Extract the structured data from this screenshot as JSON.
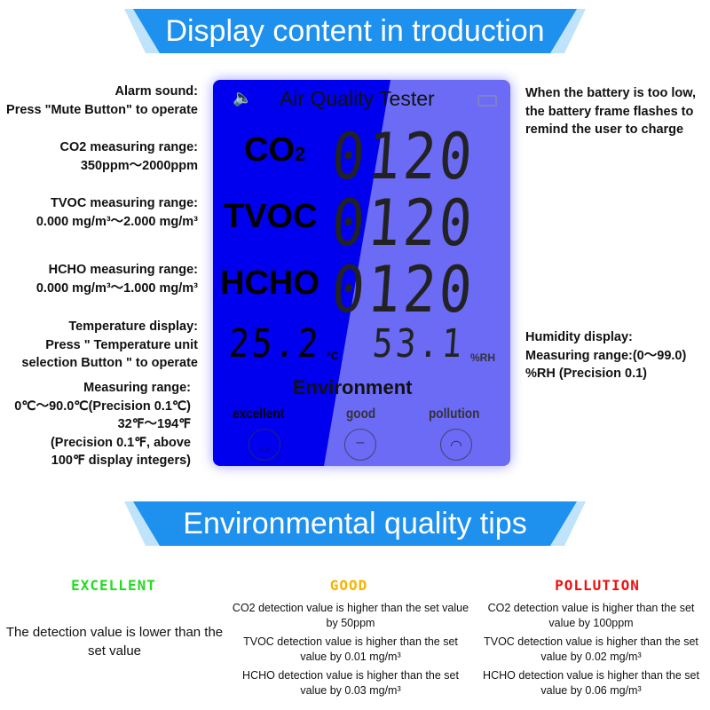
{
  "banner_top": "Display content in troduction",
  "banner_bottom": "Environmental quality tips",
  "left_notes": {
    "alarm": [
      "Alarm sound:",
      "Press \"Mute Button\" to operate"
    ],
    "co2": [
      "CO2 measuring range:",
      "350ppm～2000ppm"
    ],
    "tvoc": [
      "TVOC measuring range:",
      "0.000 mg/m³～2.000 mg/m³"
    ],
    "hcho": [
      "HCHO measuring range:",
      "0.000 mg/m³～1.000 mg/m³"
    ],
    "temp": [
      "Temperature display:",
      "Press \" Temperature unit",
      "selection Button \" to operate"
    ],
    "range": [
      "Measuring range:",
      "0℃～90.0℃(Precision 0.1℃)",
      "32℉～194℉",
      "(Precision 0.1℉, above",
      "100℉ display integers)"
    ]
  },
  "right_notes": {
    "battery": [
      "When the battery is too low,",
      "the battery frame flashes to",
      "remind the user to charge"
    ],
    "humidity": [
      "Humidity display:",
      "Measuring range:(0～99.0)",
      "%RH (Precision 0.1)"
    ]
  },
  "lcd": {
    "title": "Air Quality Tester",
    "icons": {
      "sound": "speaker-icon",
      "battery": "battery-icon"
    },
    "rows": [
      {
        "label": "CO",
        "sub": "2",
        "value": "0120"
      },
      {
        "label": "TVOC",
        "sub": "",
        "value": "0120"
      },
      {
        "label": "HCHO",
        "sub": "",
        "value": "0120"
      }
    ],
    "temperature": "25.2",
    "temp_unit": "°C",
    "humidity": "53.1",
    "humidity_unit": "%RH",
    "environment": "Environment",
    "levels": [
      "excellent",
      "good",
      "pollution"
    ],
    "faces": [
      "☺",
      "😑",
      "☹"
    ]
  },
  "tips": {
    "excellent": {
      "title": "EXCELLENT",
      "color": "#22dd22",
      "text": "The detection value is lower than the set value"
    },
    "good": {
      "title": "GOOD",
      "color": "#f5b400",
      "items": [
        "CO2 detection value is higher than the set value by 50ppm",
        "TVOC detection value is higher than the set value by 0.01 mg/m³",
        "HCHO detection value is higher than the set value by 0.03 mg/m³"
      ]
    },
    "pollution": {
      "title": "POLLUTION",
      "color": "#ee1111",
      "items": [
        "CO2 detection value is higher than the set value by 100ppm",
        "TVOC detection value is higher than the set value by 0.02 mg/m³",
        "HCHO detection value is higher than the set value by 0.06 mg/m³"
      ]
    }
  }
}
